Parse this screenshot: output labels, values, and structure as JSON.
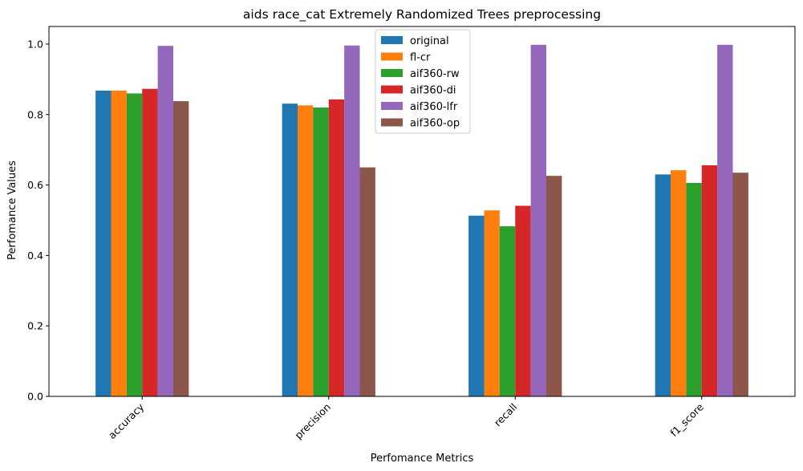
{
  "chart_data": {
    "type": "bar",
    "title": "aids race_cat Extremely Randomized Trees preprocessing",
    "xlabel": "Perfomance Metrics",
    "ylabel": "Perfomance Values",
    "categories": [
      "accuracy",
      "precision",
      "recall",
      "f1_score"
    ],
    "ylim": [
      0,
      1.05
    ],
    "yticks": [
      "0.0",
      "0.2",
      "0.4",
      "0.6",
      "0.8",
      "1.0"
    ],
    "grid": false,
    "legend_position": "top-center",
    "series": [
      {
        "name": "original",
        "color": "#1f77b4",
        "values": [
          0.868,
          0.831,
          0.513,
          0.63
        ]
      },
      {
        "name": "fl-cr",
        "color": "#ff7f0e",
        "values": [
          0.868,
          0.826,
          0.528,
          0.642
        ]
      },
      {
        "name": "aif360-rw",
        "color": "#2ca02c",
        "values": [
          0.86,
          0.82,
          0.483,
          0.606
        ]
      },
      {
        "name": "aif360-di",
        "color": "#d62728",
        "values": [
          0.873,
          0.843,
          0.541,
          0.656
        ]
      },
      {
        "name": "aif360-lfr",
        "color": "#9467bd",
        "values": [
          0.995,
          0.996,
          0.998,
          0.998
        ]
      },
      {
        "name": "aif360-op",
        "color": "#8c564b",
        "values": [
          0.838,
          0.65,
          0.626,
          0.635
        ]
      }
    ]
  }
}
